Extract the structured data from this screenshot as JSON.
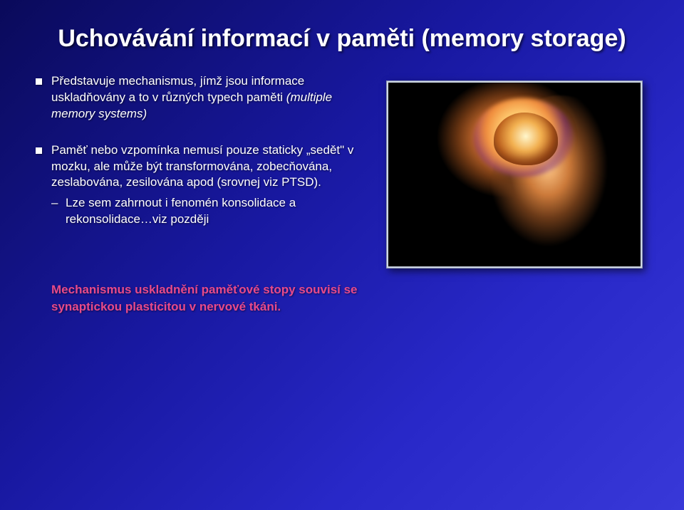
{
  "slide": {
    "title": "Uchovávání informací v paměti (memory storage)",
    "bullets": [
      {
        "main_plain": "Představuje mechanismus, jímž jsou informace uskladňovány a to v různých typech paměti ",
        "main_italic": "(multiple memory systems)"
      },
      {
        "main_plain": "Paměť nebo vzpomínka nemusí pouze staticky „sedět\" v mozku, ale může být transformována, zobecňována, zeslabována, zesilována apod (srovnej viz PTSD).",
        "sub": "Lze sem zahrnout i fenomén konsolidace a rekonsolidace…viz později"
      }
    ],
    "footer": "Mechanismus uskladnění paměťové stopy souvisí se synaptickou plasticitou v nervové tkáni.",
    "footer_color": "#e84a8a"
  }
}
